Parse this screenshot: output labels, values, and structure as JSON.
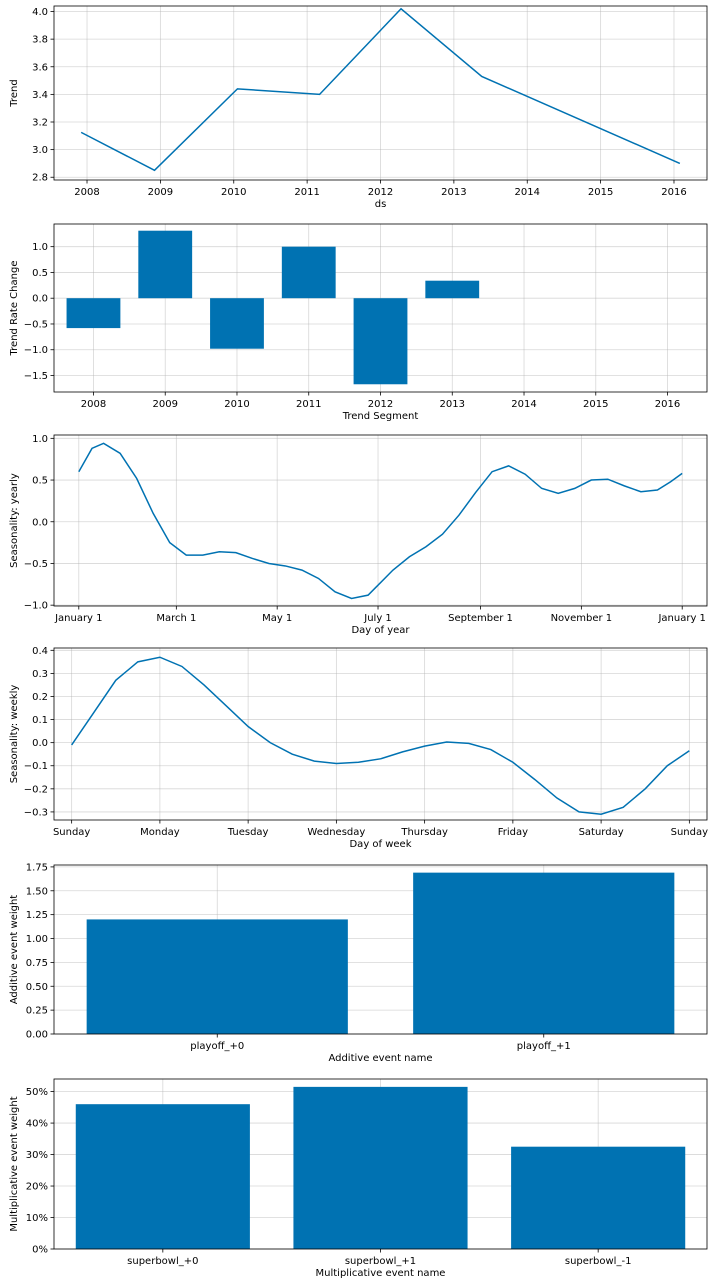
{
  "colors": {
    "series": "#0072B2",
    "grid": "#b0b0b0",
    "axis": "#000000"
  },
  "chart_data": [
    {
      "type": "line",
      "xlabel": "ds",
      "ylabel": "Trend",
      "x_type": "year",
      "x": [
        2007.92,
        2008.92,
        2010.05,
        2011.17,
        2012.28,
        2013.38,
        2016.08
      ],
      "y": [
        3.125,
        2.85,
        3.44,
        3.4,
        4.02,
        3.53,
        2.9
      ],
      "xlim": [
        2007.55,
        2016.45
      ],
      "ylim": [
        2.78,
        4.04
      ],
      "xticks": [
        2008,
        2009,
        2010,
        2011,
        2012,
        2013,
        2014,
        2015,
        2016
      ],
      "xtick_labels": [
        "2008",
        "2009",
        "2010",
        "2011",
        "2012",
        "2013",
        "2014",
        "2015",
        "2016"
      ],
      "yticks": [
        2.8,
        3.0,
        3.2,
        3.4,
        3.6,
        3.8,
        4.0
      ],
      "ytick_labels": [
        "2.8",
        "3.0",
        "3.2",
        "3.4",
        "3.6",
        "3.8",
        "4.0"
      ],
      "grid": true
    },
    {
      "type": "bar",
      "xlabel": "Trend Segment",
      "ylabel": "Trend Rate Change",
      "x_type": "year",
      "x": [
        2008,
        2009,
        2010,
        2011,
        2012,
        2013
      ],
      "values": [
        -0.58,
        1.31,
        -0.98,
        1.0,
        -1.67,
        0.34
      ],
      "bar_width": 0.75,
      "xlim": [
        2007.45,
        2016.55
      ],
      "ylim": [
        -1.82,
        1.44
      ],
      "xticks": [
        2008,
        2009,
        2010,
        2011,
        2012,
        2013,
        2014,
        2015,
        2016
      ],
      "xtick_labels": [
        "2008",
        "2009",
        "2010",
        "2011",
        "2012",
        "2013",
        "2014",
        "2015",
        "2016"
      ],
      "yticks": [
        -1.5,
        -1.0,
        -0.5,
        0.0,
        0.5,
        1.0
      ],
      "ytick_labels": [
        "−1.5",
        "−1.0",
        "−0.5",
        "0.0",
        "0.5",
        "1.0"
      ],
      "grid": true
    },
    {
      "type": "line",
      "xlabel": "Day of year",
      "ylabel": "Seasonality: yearly",
      "x_type": "day_of_year",
      "x": [
        0,
        8,
        15,
        25,
        35,
        45,
        55,
        65,
        75,
        85,
        95,
        105,
        115,
        125,
        135,
        145,
        155,
        165,
        175,
        180,
        190,
        200,
        210,
        220,
        230,
        240,
        250,
        260,
        270,
        280,
        290,
        300,
        310,
        320,
        330,
        340,
        350,
        358,
        365
      ],
      "y": [
        0.6,
        0.88,
        0.94,
        0.82,
        0.52,
        0.1,
        -0.25,
        -0.4,
        -0.4,
        -0.36,
        -0.37,
        -0.44,
        -0.5,
        -0.53,
        -0.58,
        -0.68,
        -0.84,
        -0.92,
        -0.88,
        -0.78,
        -0.58,
        -0.42,
        -0.3,
        -0.15,
        0.08,
        0.35,
        0.6,
        0.67,
        0.57,
        0.4,
        0.34,
        0.4,
        0.5,
        0.51,
        0.43,
        0.36,
        0.38,
        0.48,
        0.58
      ],
      "xlim": [
        -15,
        380
      ],
      "ylim": [
        -1.01,
        1.04
      ],
      "xticks": [
        0,
        59,
        120,
        181,
        243,
        304,
        365
      ],
      "xtick_labels": [
        "January 1",
        "March 1",
        "May 1",
        "July 1",
        "September 1",
        "November 1",
        "January 1"
      ],
      "yticks": [
        -1.0,
        -0.5,
        0.0,
        0.5,
        1.0
      ],
      "ytick_labels": [
        "−1.0",
        "−0.5",
        "0.0",
        "0.5",
        "1.0"
      ],
      "grid": true
    },
    {
      "type": "line",
      "xlabel": "Day of week",
      "ylabel": "Seasonality: weekly",
      "x_type": "day_of_week",
      "x": [
        0,
        0.25,
        0.5,
        0.75,
        1.0,
        1.25,
        1.5,
        1.75,
        2.0,
        2.25,
        2.5,
        2.75,
        3.0,
        3.25,
        3.5,
        3.75,
        4.0,
        4.25,
        4.5,
        4.75,
        5.0,
        5.25,
        5.5,
        5.75,
        6.0,
        6.25,
        6.5,
        6.75,
        7.0
      ],
      "y": [
        -0.01,
        0.13,
        0.27,
        0.35,
        0.37,
        0.33,
        0.25,
        0.16,
        0.07,
        0.0,
        -0.05,
        -0.08,
        -0.09,
        -0.085,
        -0.07,
        -0.04,
        -0.015,
        0.003,
        -0.003,
        -0.03,
        -0.085,
        -0.16,
        -0.24,
        -0.3,
        -0.31,
        -0.28,
        -0.2,
        -0.1,
        -0.035
      ],
      "xlim": [
        -0.2,
        7.2
      ],
      "ylim": [
        -0.335,
        0.41
      ],
      "xticks": [
        0,
        1,
        2,
        3,
        4,
        5,
        6,
        7
      ],
      "xtick_labels": [
        "Sunday",
        "Monday",
        "Tuesday",
        "Wednesday",
        "Thursday",
        "Friday",
        "Saturday",
        "Sunday"
      ],
      "yticks": [
        -0.3,
        -0.2,
        -0.1,
        0.0,
        0.1,
        0.2,
        0.3,
        0.4
      ],
      "ytick_labels": [
        "−0.3",
        "−0.2",
        "−0.1",
        "0.0",
        "0.1",
        "0.2",
        "0.3",
        "0.4"
      ],
      "grid": true
    },
    {
      "type": "bar",
      "xlabel": "Additive event name",
      "ylabel": "Additive event weight",
      "x_type": "category",
      "categories": [
        "playoff_+0",
        "playoff_+1"
      ],
      "values": [
        1.2,
        1.69
      ],
      "bar_width": 0.8,
      "xlim": [
        -0.5,
        1.5
      ],
      "ylim": [
        0,
        1.77
      ],
      "yticks": [
        0.0,
        0.25,
        0.5,
        0.75,
        1.0,
        1.25,
        1.5,
        1.75
      ],
      "ytick_labels": [
        "0.00",
        "0.25",
        "0.50",
        "0.75",
        "1.00",
        "1.25",
        "1.50",
        "1.75"
      ],
      "grid": true
    },
    {
      "type": "bar",
      "xlabel": "Multiplicative event name",
      "ylabel": "Multiplicative event weight",
      "x_type": "category",
      "categories": [
        "superbowl_+0",
        "superbowl_+1",
        "superbowl_-1"
      ],
      "values": [
        0.46,
        0.515,
        0.325
      ],
      "bar_width": 0.8,
      "xlim": [
        -0.5,
        2.5
      ],
      "ylim": [
        0,
        0.54
      ],
      "yticks": [
        0,
        0.1,
        0.2,
        0.3,
        0.4,
        0.5
      ],
      "ytick_labels": [
        "0%",
        "10%",
        "20%",
        "30%",
        "40%",
        "50%"
      ],
      "grid": true
    }
  ]
}
